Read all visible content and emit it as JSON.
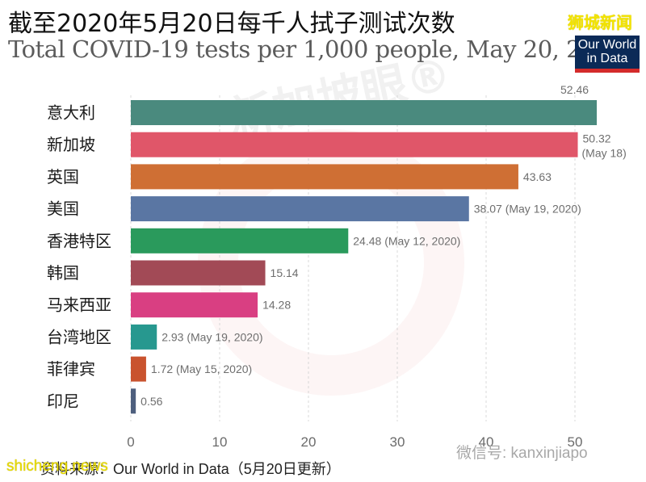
{
  "header": {
    "title_cn": "截至2020年5月20日每千人拭子测试次数",
    "title_en": "Total COVID-19 tests per 1,000 people, May 20, 2020",
    "brand_cn": "狮城新闻",
    "owid_logo_line1": "Our World",
    "owid_logo_line2": "in Data"
  },
  "watermarks": {
    "center": "新加坡眼®",
    "wechat": "微信号: kanxinjiapo",
    "footer": "shicheng.news"
  },
  "footer": {
    "source": "资料来源：Our World in Data（5月20日更新）"
  },
  "chart_data": {
    "type": "bar",
    "orientation": "horizontal",
    "title": "Total COVID-19 tests per 1,000 people, May 20, 2020",
    "xlabel": "",
    "ylabel": "",
    "xlim": [
      0,
      55
    ],
    "xticks": [
      0,
      10,
      20,
      30,
      40,
      50
    ],
    "grid": "vertical dashed",
    "categories": [
      "意大利",
      "新加坡",
      "英国",
      "美国",
      "香港特区",
      "韩国",
      "马来西亚",
      "台湾地区",
      "菲律宾",
      "印尼"
    ],
    "values": [
      52.46,
      50.32,
      43.63,
      38.07,
      24.48,
      15.14,
      14.28,
      2.93,
      1.72,
      0.56
    ],
    "labels": [
      "52.46",
      "50.32 (May 18)",
      "43.63",
      "38.07 (May 19, 2020)",
      "24.48 (May 12, 2020)",
      "15.14",
      "14.28",
      "2.93 (May 19, 2020)",
      "1.72 (May 15, 2020)",
      "0.56"
    ],
    "colors": [
      "#4a8a7e",
      "#e05669",
      "#cf6f34",
      "#5a76a3",
      "#2a9a5c",
      "#a24a56",
      "#d93f82",
      "#27988f",
      "#c9532e",
      "#4e5f7e"
    ]
  }
}
